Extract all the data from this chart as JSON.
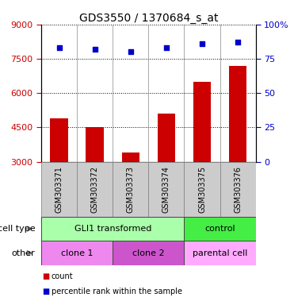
{
  "title": "GDS3550 / 1370684_s_at",
  "samples": [
    "GSM303371",
    "GSM303372",
    "GSM303373",
    "GSM303374",
    "GSM303375",
    "GSM303376"
  ],
  "counts": [
    4900,
    4500,
    3400,
    5100,
    6500,
    7200
  ],
  "percentiles": [
    83,
    82,
    80,
    83,
    86,
    87
  ],
  "ylim_left": [
    3000,
    9000
  ],
  "ylim_right": [
    0,
    100
  ],
  "yticks_left": [
    3000,
    4500,
    6000,
    7500,
    9000
  ],
  "yticks_right": [
    0,
    25,
    50,
    75,
    100
  ],
  "bar_color": "#cc0000",
  "dot_color": "#0000cc",
  "bar_bottom": 3000,
  "sample_box_color": "#cccccc",
  "cell_type_row": {
    "label": "cell type",
    "groups": [
      {
        "name": "GLI1 transformed",
        "span": [
          0,
          4
        ],
        "color": "#aaffaa"
      },
      {
        "name": "control",
        "span": [
          4,
          6
        ],
        "color": "#44ee44"
      }
    ]
  },
  "other_row": {
    "label": "other",
    "groups": [
      {
        "name": "clone 1",
        "span": [
          0,
          2
        ],
        "color": "#ee88ee"
      },
      {
        "name": "clone 2",
        "span": [
          2,
          4
        ],
        "color": "#cc55cc"
      },
      {
        "name": "parental cell",
        "span": [
          4,
          6
        ],
        "color": "#ffaaff"
      }
    ]
  },
  "legend_items": [
    {
      "color": "#cc0000",
      "label": "count"
    },
    {
      "color": "#0000cc",
      "label": "percentile rank within the sample"
    }
  ],
  "title_fontsize": 10,
  "tick_fontsize": 8,
  "annot_fontsize": 8,
  "sample_fontsize": 7
}
